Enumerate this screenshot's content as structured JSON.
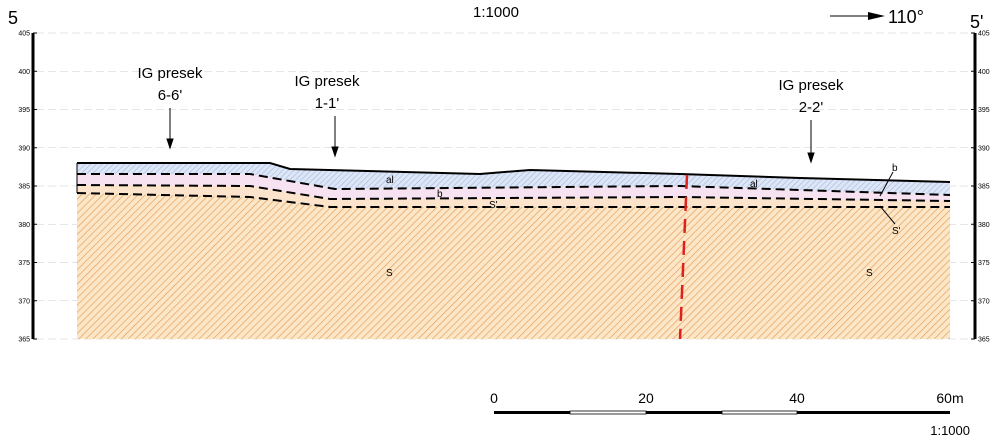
{
  "header": {
    "scale": "1:1000",
    "start_label": "5",
    "end_label": "5'",
    "direction": "110°"
  },
  "axis": {
    "left_ticks": [
      405,
      400,
      395,
      390,
      385,
      380,
      375,
      370,
      365
    ],
    "right_ticks": [
      405,
      400,
      395,
      390,
      385,
      380,
      375,
      370,
      365
    ]
  },
  "boreholes": [
    {
      "label": "IG presek",
      "id": "6-6'"
    },
    {
      "label": "IG presek",
      "id": "1-1'"
    },
    {
      "label": "IG presek",
      "id": "2-2'"
    }
  ],
  "layers": [
    "al",
    "b",
    "S'",
    "S",
    "al",
    "b",
    "S'",
    "S"
  ],
  "scale_bar": {
    "ticks": [
      "0",
      "20",
      "40",
      "60m"
    ],
    "scale": "1:1000"
  }
}
